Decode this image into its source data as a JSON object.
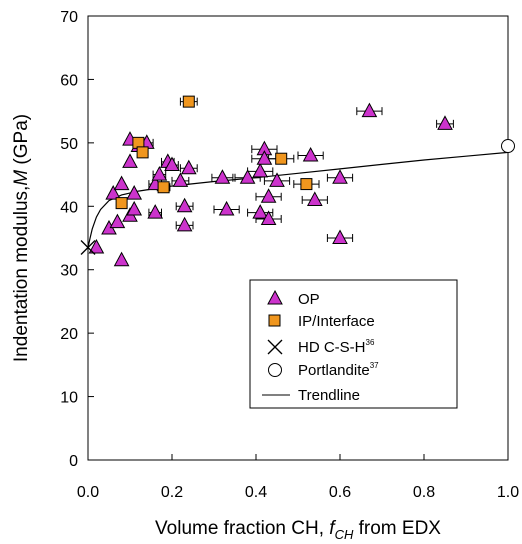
{
  "chart_data": {
    "type": "scatter",
    "title": "",
    "xlabel": {
      "main": "Volume fraction CH, ",
      "var": "f",
      "sub": "CH",
      "tail": "  from EDX"
    },
    "ylabel": {
      "main": "Indentation modulus,",
      "var": "M",
      "tail": " (GPa)"
    },
    "xlim": [
      0.0,
      1.0
    ],
    "ylim": [
      0,
      70
    ],
    "x_ticks": [
      "0.0",
      "0.2",
      "0.4",
      "0.6",
      "0.8",
      "1.0"
    ],
    "y_ticks": [
      "0",
      "10",
      "20",
      "30",
      "40",
      "50",
      "60",
      "70"
    ],
    "x_tick_values": [
      0.0,
      0.2,
      0.4,
      0.6,
      0.8,
      1.0
    ],
    "y_tick_values": [
      0,
      10,
      20,
      30,
      40,
      50,
      60,
      70
    ],
    "grid": false,
    "legend_position": "bottom-right",
    "colors": {
      "op": "#cc33cc",
      "ip": "#f0961e",
      "axis": "#000000"
    },
    "series": [
      {
        "name": "OP",
        "marker": "triangle",
        "points": [
          {
            "x": 0.02,
            "y": 33.5,
            "xerr": 0.0
          },
          {
            "x": 0.05,
            "y": 36.5,
            "xerr": 0.0
          },
          {
            "x": 0.06,
            "y": 42.0,
            "xerr": 0.0
          },
          {
            "x": 0.07,
            "y": 37.5,
            "xerr": 0.0
          },
          {
            "x": 0.08,
            "y": 43.5,
            "xerr": 0.0
          },
          {
            "x": 0.08,
            "y": 31.5,
            "xerr": 0.0
          },
          {
            "x": 0.1,
            "y": 38.5,
            "xerr": 0.0
          },
          {
            "x": 0.1,
            "y": 47.0,
            "xerr": 0.0
          },
          {
            "x": 0.1,
            "y": 50.5,
            "xerr": 0.0
          },
          {
            "x": 0.11,
            "y": 42.0,
            "xerr": 0.0
          },
          {
            "x": 0.11,
            "y": 39.5,
            "xerr": 0.0
          },
          {
            "x": 0.12,
            "y": 49.5,
            "xerr": 0.0
          },
          {
            "x": 0.14,
            "y": 50.0,
            "xerr": 0.015
          },
          {
            "x": 0.16,
            "y": 39.0,
            "xerr": 0.015
          },
          {
            "x": 0.16,
            "y": 43.5,
            "xerr": 0.015
          },
          {
            "x": 0.17,
            "y": 45.0,
            "xerr": 0.015
          },
          {
            "x": 0.19,
            "y": 47.0,
            "xerr": 0.015
          },
          {
            "x": 0.2,
            "y": 46.5,
            "xerr": 0.015
          },
          {
            "x": 0.22,
            "y": 44.0,
            "xerr": 0.02
          },
          {
            "x": 0.23,
            "y": 40.0,
            "xerr": 0.02
          },
          {
            "x": 0.23,
            "y": 37.0,
            "xerr": 0.02
          },
          {
            "x": 0.24,
            "y": 46.0,
            "xerr": 0.02
          },
          {
            "x": 0.32,
            "y": 44.5,
            "xerr": 0.025
          },
          {
            "x": 0.33,
            "y": 39.5,
            "xerr": 0.03
          },
          {
            "x": 0.38,
            "y": 44.5,
            "xerr": 0.03
          },
          {
            "x": 0.41,
            "y": 45.5,
            "xerr": 0.03
          },
          {
            "x": 0.41,
            "y": 39.0,
            "xerr": 0.03
          },
          {
            "x": 0.42,
            "y": 49.0,
            "xerr": 0.03
          },
          {
            "x": 0.42,
            "y": 47.5,
            "xerr": 0.03
          },
          {
            "x": 0.43,
            "y": 41.5,
            "xerr": 0.03
          },
          {
            "x": 0.43,
            "y": 38.0,
            "xerr": 0.03
          },
          {
            "x": 0.45,
            "y": 44.0,
            "xerr": 0.03
          },
          {
            "x": 0.53,
            "y": 48.0,
            "xerr": 0.03
          },
          {
            "x": 0.54,
            "y": 41.0,
            "xerr": 0.03
          },
          {
            "x": 0.6,
            "y": 44.5,
            "xerr": 0.03
          },
          {
            "x": 0.6,
            "y": 35.0,
            "xerr": 0.03
          },
          {
            "x": 0.67,
            "y": 55.0,
            "xerr": 0.03
          },
          {
            "x": 0.85,
            "y": 53.0,
            "xerr": 0.02
          }
        ]
      },
      {
        "name": "IP/Interface",
        "marker": "square",
        "points": [
          {
            "x": 0.08,
            "y": 40.5,
            "xerr": 0.0
          },
          {
            "x": 0.12,
            "y": 50.0,
            "xerr": 0.0
          },
          {
            "x": 0.13,
            "y": 48.5,
            "xerr": 0.0
          },
          {
            "x": 0.18,
            "y": 43.0,
            "xerr": 0.015
          },
          {
            "x": 0.24,
            "y": 56.5,
            "xerr": 0.02
          },
          {
            "x": 0.46,
            "y": 47.5,
            "xerr": 0.03
          },
          {
            "x": 0.52,
            "y": 43.5,
            "xerr": 0.03
          }
        ]
      },
      {
        "name": "HD C-S-H",
        "name_sup": "36",
        "marker": "x",
        "points": [
          {
            "x": 0.0,
            "y": 33.5,
            "xerr": 0.0
          }
        ]
      },
      {
        "name": "Portlandite",
        "name_sup": "37",
        "marker": "circle",
        "points": [
          {
            "x": 1.0,
            "y": 49.5,
            "xerr": 0.0
          }
        ]
      },
      {
        "name": "Trendline",
        "marker": "line",
        "points": [
          {
            "x": 0.0,
            "y": 33.5
          },
          {
            "x": 0.005,
            "y": 35.0
          },
          {
            "x": 0.01,
            "y": 36.4
          },
          {
            "x": 0.02,
            "y": 38.3
          },
          {
            "x": 0.03,
            "y": 39.5
          },
          {
            "x": 0.05,
            "y": 40.9
          },
          {
            "x": 0.08,
            "y": 41.8
          },
          {
            "x": 0.12,
            "y": 42.4
          },
          {
            "x": 0.2,
            "y": 43.2
          },
          {
            "x": 0.3,
            "y": 43.9
          },
          {
            "x": 0.4,
            "y": 44.5
          },
          {
            "x": 0.5,
            "y": 45.2
          },
          {
            "x": 0.6,
            "y": 45.9
          },
          {
            "x": 0.7,
            "y": 46.6
          },
          {
            "x": 0.8,
            "y": 47.3
          },
          {
            "x": 0.9,
            "y": 47.9
          },
          {
            "x": 1.0,
            "y": 48.5
          }
        ]
      }
    ]
  }
}
